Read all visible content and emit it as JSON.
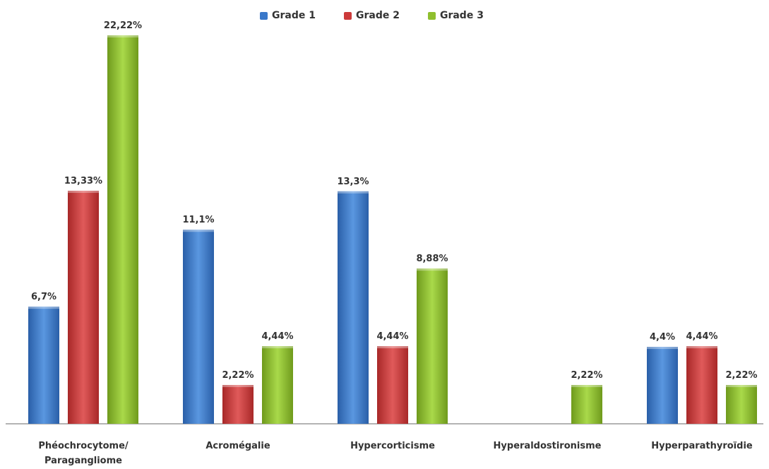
{
  "chart_data": {
    "type": "bar",
    "title": "",
    "xlabel": "",
    "ylabel": "",
    "categories_lines": [
      [
        "Phéochrocytome/",
        "Paragangliome"
      ],
      [
        "Acromégalie"
      ],
      [
        "Hypercorticisme"
      ],
      [
        "Hyperaldostironisme"
      ],
      [
        "Hyperparathyroïdie"
      ]
    ],
    "categories": [
      "Phéochrocytome/ Paragangliome",
      "Acromégalie",
      "Hypercorticisme",
      "Hyperaldostironisme",
      "Hyperparathyroïdie"
    ],
    "series": [
      {
        "name": "Grade 1",
        "color": "#3a78c9",
        "values": [
          6.7,
          11.1,
          13.3,
          null,
          4.4
        ],
        "labels": [
          "6,7%",
          "11,1%",
          "13,3%",
          "",
          "4,4%"
        ]
      },
      {
        "name": "Grade 2",
        "color": "#cc3a3a",
        "values": [
          13.33,
          2.22,
          4.44,
          null,
          4.44
        ],
        "labels": [
          "13,33%",
          "2,22%",
          "4,44%",
          "",
          "4,44%"
        ]
      },
      {
        "name": "Grade 3",
        "color": "#8fbf2e",
        "values": [
          22.22,
          4.44,
          8.88,
          2.22,
          2.22
        ],
        "labels": [
          "22,22%",
          "4,44%",
          "8,88%",
          "2,22%",
          "2,22%"
        ]
      }
    ],
    "ylim": [
      0,
      24
    ],
    "grid": false,
    "legend_position": "top"
  }
}
